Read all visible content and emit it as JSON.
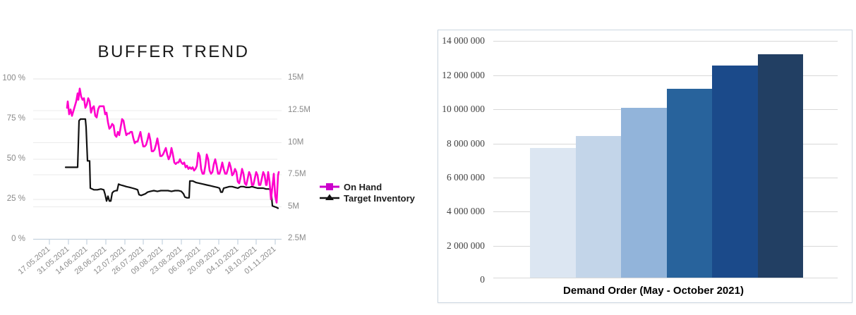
{
  "page": {
    "background": "#ffffff"
  },
  "chart_data": [
    {
      "id": "buffer-trend",
      "type": "line",
      "title": "BUFFER TREND",
      "grid": true,
      "legend_position": "right",
      "left_axis": {
        "unit": "%",
        "tick_labels": [
          "100 %",
          "75 %",
          "50 %",
          "25 %",
          "0 %"
        ],
        "range": [
          0,
          100
        ]
      },
      "right_axis": {
        "unit": "M",
        "tick_labels": [
          "15M",
          "12.5M",
          "10M",
          "7.5M",
          "5M",
          "2.5M"
        ],
        "range_millions": [
          2.5,
          15
        ]
      },
      "x_tick_labels": [
        "17.05.2021",
        "31.05.2021",
        "14.06.2021",
        "28.06.2021",
        "12.07.2021",
        "26.07.2021",
        "09.08.2021",
        "23.08.2021",
        "06.09.2021",
        "20.09.2021",
        "04.10.2021",
        "18.10.2021",
        "01.11.2021"
      ],
      "legend": [
        {
          "label": "On Hand",
          "marker": "square",
          "color": "#cc00cc"
        },
        {
          "label": "Target Inventory",
          "marker": "triangle",
          "color": "#111111"
        }
      ],
      "points_format": "[x_position_px_on_time_axis, value_percent_left_axis]",
      "series": [
        {
          "name": "On Hand",
          "color": "#ff00cc",
          "axis": "left",
          "points": [
            [
              95,
              82
            ],
            [
              96,
              86
            ],
            [
              98,
              78
            ],
            [
              100,
              81
            ],
            [
              102,
              77
            ],
            [
              104,
              80
            ],
            [
              106,
              83
            ],
            [
              108,
              86
            ],
            [
              110,
              91
            ],
            [
              111,
              87
            ],
            [
              113,
              94
            ],
            [
              115,
              89
            ],
            [
              117,
              87
            ],
            [
              119,
              88
            ],
            [
              121,
              82
            ],
            [
              123,
              84
            ],
            [
              125,
              88
            ],
            [
              127,
              86
            ],
            [
              129,
              79
            ],
            [
              131,
              82
            ],
            [
              133,
              83
            ],
            [
              135,
              77
            ],
            [
              137,
              76
            ],
            [
              139,
              81
            ],
            [
              141,
              83
            ],
            [
              144,
              83
            ],
            [
              147,
              83
            ],
            [
              149,
              78
            ],
            [
              151,
              79
            ],
            [
              153,
              73
            ],
            [
              155,
              69
            ],
            [
              157,
              70
            ],
            [
              159,
              72
            ],
            [
              161,
              71
            ],
            [
              163,
              65
            ],
            [
              165,
              64
            ],
            [
              167,
              67
            ],
            [
              169,
              65
            ],
            [
              171,
              70
            ],
            [
              173,
              75
            ],
            [
              175,
              74
            ],
            [
              177,
              69
            ],
            [
              179,
              65
            ],
            [
              181,
              66
            ],
            [
              183,
              66
            ],
            [
              185,
              67
            ],
            [
              187,
              67
            ],
            [
              189,
              63
            ],
            [
              191,
              60
            ],
            [
              193,
              61
            ],
            [
              195,
              61
            ],
            [
              197,
              64
            ],
            [
              199,
              67
            ],
            [
              201,
              62
            ],
            [
              203,
              58
            ],
            [
              205,
              58
            ],
            [
              207,
              59
            ],
            [
              209,
              62
            ],
            [
              211,
              66
            ],
            [
              213,
              62
            ],
            [
              215,
              55
            ],
            [
              217,
              55
            ],
            [
              219,
              56
            ],
            [
              221,
              59
            ],
            [
              223,
              63
            ],
            [
              225,
              58
            ],
            [
              227,
              52
            ],
            [
              229,
              52
            ],
            [
              231,
              53
            ],
            [
              233,
              55
            ],
            [
              235,
              57
            ],
            [
              237,
              53
            ],
            [
              239,
              50
            ],
            [
              241,
              52
            ],
            [
              243,
              57
            ],
            [
              245,
              53
            ],
            [
              247,
              48
            ],
            [
              249,
              47
            ],
            [
              251,
              48
            ],
            [
              253,
              48
            ],
            [
              255,
              50
            ],
            [
              257,
              48
            ],
            [
              259,
              47
            ],
            [
              261,
              48
            ],
            [
              263,
              45
            ],
            [
              265,
              46
            ],
            [
              267,
              44
            ],
            [
              269,
              45
            ],
            [
              271,
              44
            ],
            [
              273,
              45
            ],
            [
              275,
              43
            ],
            [
              277,
              44
            ],
            [
              279,
              46
            ],
            [
              281,
              54
            ],
            [
              283,
              52
            ],
            [
              285,
              44
            ],
            [
              287,
              41
            ],
            [
              289,
              41
            ],
            [
              291,
              46
            ],
            [
              293,
              53
            ],
            [
              295,
              50
            ],
            [
              297,
              43
            ],
            [
              299,
              41
            ],
            [
              301,
              42
            ],
            [
              303,
              47
            ],
            [
              305,
              50
            ],
            [
              307,
              46
            ],
            [
              309,
              41
            ],
            [
              311,
              41
            ],
            [
              313,
              44
            ],
            [
              315,
              48
            ],
            [
              317,
              44
            ],
            [
              319,
              41
            ],
            [
              321,
              41
            ],
            [
              323,
              44
            ],
            [
              325,
              48
            ],
            [
              327,
              45
            ],
            [
              329,
              40
            ],
            [
              331,
              41
            ],
            [
              333,
              44
            ],
            [
              335,
              42
            ],
            [
              337,
              36
            ],
            [
              339,
              35
            ],
            [
              341,
              39
            ],
            [
              343,
              44
            ],
            [
              345,
              41
            ],
            [
              347,
              35
            ],
            [
              349,
              34
            ],
            [
              351,
              38
            ],
            [
              353,
              42
            ],
            [
              355,
              40
            ],
            [
              357,
              34
            ],
            [
              359,
              34
            ],
            [
              361,
              38
            ],
            [
              363,
              42
            ],
            [
              365,
              40
            ],
            [
              367,
              34
            ],
            [
              369,
              34
            ],
            [
              371,
              38
            ],
            [
              373,
              42
            ],
            [
              375,
              40
            ],
            [
              377,
              34
            ],
            [
              378,
              34
            ],
            [
              380,
              42
            ],
            [
              382,
              36
            ],
            [
              384,
              25
            ],
            [
              386,
              33
            ],
            [
              388,
              41
            ],
            [
              390,
              27
            ],
            [
              392,
              23
            ],
            [
              394,
              40
            ],
            [
              395,
              42
            ]
          ]
        },
        {
          "name": "Target Inventory",
          "color": "#111111",
          "axis": "left",
          "points": [
            [
              93,
              45
            ],
            [
              110,
              45
            ],
            [
              112,
              74
            ],
            [
              114,
              75
            ],
            [
              121,
              75
            ],
            [
              122,
              70
            ],
            [
              124,
              49
            ],
            [
              127,
              49
            ],
            [
              128,
              32
            ],
            [
              133,
              31
            ],
            [
              138,
              31
            ],
            [
              143,
              31.5
            ],
            [
              147,
              31
            ],
            [
              149,
              28
            ],
            [
              151,
              24
            ],
            [
              153,
              27
            ],
            [
              155,
              24
            ],
            [
              157,
              24
            ],
            [
              159,
              29
            ],
            [
              161,
              30
            ],
            [
              164,
              30.5
            ],
            [
              166,
              30.5
            ],
            [
              168,
              34.5
            ],
            [
              171,
              34
            ],
            [
              175,
              33.5
            ],
            [
              179,
              33
            ],
            [
              184,
              32.5
            ],
            [
              188,
              32
            ],
            [
              192,
              31.5
            ],
            [
              195,
              31
            ],
            [
              197,
              28
            ],
            [
              200,
              27.5
            ],
            [
              203,
              28
            ],
            [
              206,
              28.5
            ],
            [
              209,
              29.5
            ],
            [
              213,
              30
            ],
            [
              218,
              30.5
            ],
            [
              223,
              30
            ],
            [
              228,
              30.5
            ],
            [
              233,
              30.5
            ],
            [
              238,
              30.5
            ],
            [
              243,
              30
            ],
            [
              248,
              30.5
            ],
            [
              253,
              30.5
            ],
            [
              257,
              30
            ],
            [
              260,
              28.5
            ],
            [
              262,
              26.5
            ],
            [
              265,
              26
            ],
            [
              268,
              26
            ],
            [
              269,
              36.5
            ],
            [
              273,
              36.5
            ],
            [
              278,
              35.5
            ],
            [
              283,
              35
            ],
            [
              288,
              34.5
            ],
            [
              293,
              34
            ],
            [
              298,
              33.5
            ],
            [
              303,
              33
            ],
            [
              308,
              32.5
            ],
            [
              311,
              32
            ],
            [
              313,
              29.5
            ],
            [
              315,
              29.5
            ],
            [
              317,
              32
            ],
            [
              321,
              32.5
            ],
            [
              325,
              33
            ],
            [
              329,
              33
            ],
            [
              333,
              32.5
            ],
            [
              337,
              32
            ],
            [
              341,
              33
            ],
            [
              345,
              33
            ],
            [
              349,
              32.5
            ],
            [
              353,
              32.5
            ],
            [
              357,
              33
            ],
            [
              361,
              32.5
            ],
            [
              365,
              32
            ],
            [
              369,
              32
            ],
            [
              373,
              32
            ],
            [
              377,
              31.5
            ],
            [
              381,
              31.5
            ],
            [
              384,
              31
            ],
            [
              385,
              26
            ],
            [
              386,
              21
            ],
            [
              389,
              20.5
            ],
            [
              392,
              20
            ],
            [
              394,
              19.5
            ]
          ]
        }
      ]
    },
    {
      "id": "demand-order",
      "type": "bar",
      "categories": [
        "",
        "",
        "",
        "",
        "",
        ""
      ],
      "values": [
        7600000,
        8300000,
        9950000,
        11050000,
        12450000,
        13100000
      ],
      "bar_colors": [
        "#dce6f2",
        "#c3d5e9",
        "#92b4da",
        "#28639c",
        "#1b4a8a",
        "#223f63"
      ],
      "y_tick_labels": [
        "14 000 000",
        "12 000 000",
        "10 000 000",
        "8 000 000",
        "6 000 000",
        "4 000 000",
        "2 000 000",
        "0"
      ],
      "ylim": [
        0,
        14000000
      ],
      "xlabel": "Demand Order (May - October 2021)",
      "grid": true
    }
  ]
}
